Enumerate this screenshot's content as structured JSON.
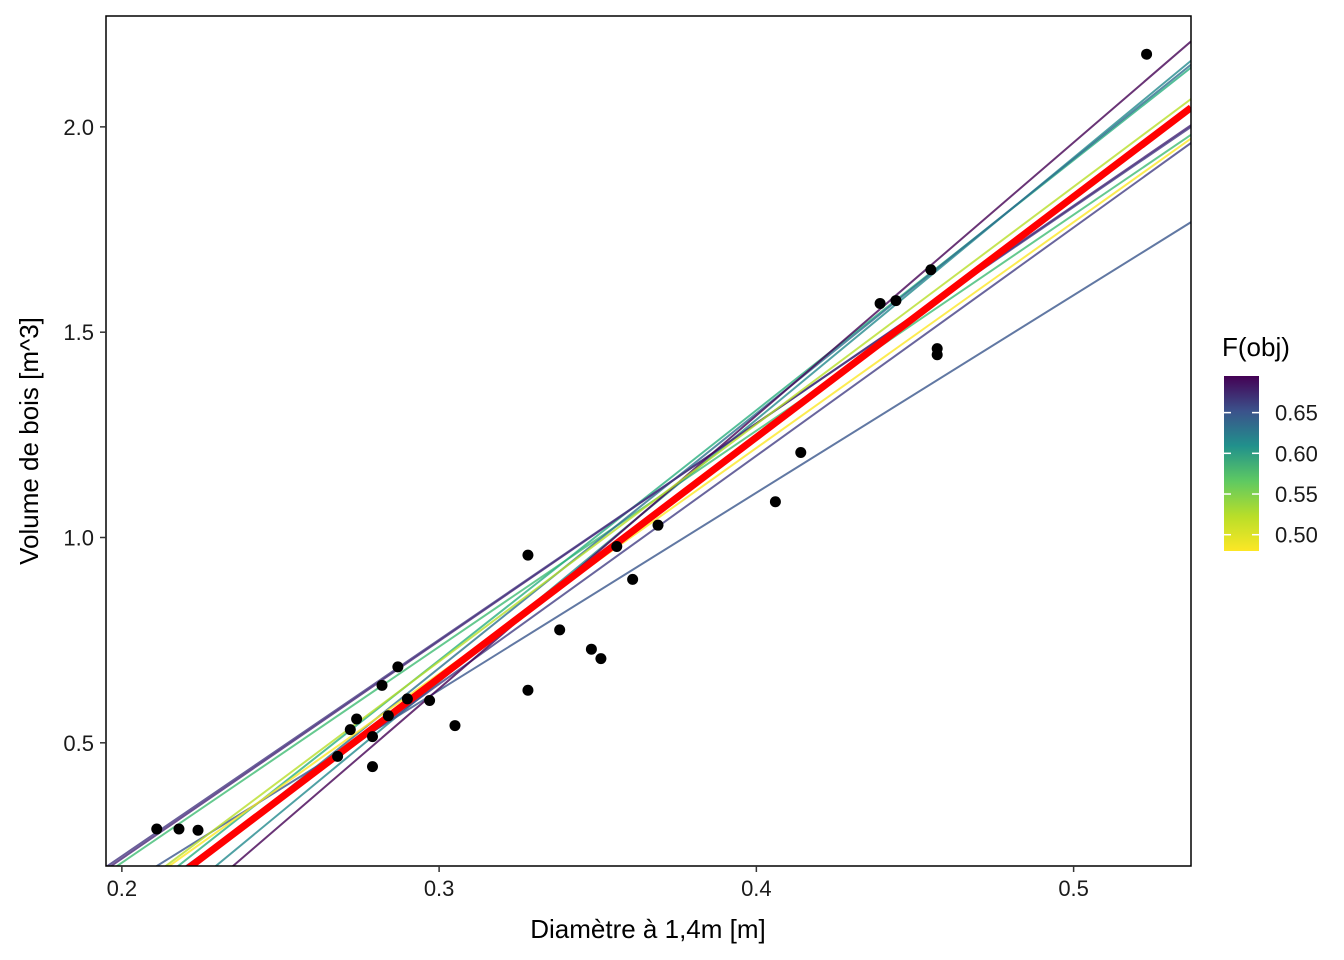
{
  "chart_data": {
    "type": "scatter",
    "title": "",
    "xlabel": "Diamètre à 1,4m  [m]",
    "ylabel": "Volume de bois  [m^3]",
    "xlim": [
      0.195,
      0.537
    ],
    "ylim": [
      0.2,
      2.27
    ],
    "x_ticks": [
      0.2,
      0.3,
      0.4,
      0.5
    ],
    "x_tick_labels": [
      "0.2",
      "0.3",
      "0.4",
      "0.5"
    ],
    "y_ticks": [
      0.5,
      1.0,
      1.5,
      2.0
    ],
    "y_tick_labels": [
      "0.5",
      "1.0",
      "1.5",
      "2.0"
    ],
    "grid": false,
    "points": [
      {
        "x": 0.211,
        "y": 0.29
      },
      {
        "x": 0.218,
        "y": 0.29
      },
      {
        "x": 0.224,
        "y": 0.287
      },
      {
        "x": 0.268,
        "y": 0.467
      },
      {
        "x": 0.272,
        "y": 0.532
      },
      {
        "x": 0.274,
        "y": 0.558
      },
      {
        "x": 0.279,
        "y": 0.442
      },
      {
        "x": 0.279,
        "y": 0.515
      },
      {
        "x": 0.282,
        "y": 0.64
      },
      {
        "x": 0.284,
        "y": 0.566
      },
      {
        "x": 0.287,
        "y": 0.685
      },
      {
        "x": 0.29,
        "y": 0.607
      },
      {
        "x": 0.297,
        "y": 0.603
      },
      {
        "x": 0.305,
        "y": 0.542
      },
      {
        "x": 0.328,
        "y": 0.957
      },
      {
        "x": 0.328,
        "y": 0.628
      },
      {
        "x": 0.338,
        "y": 0.775
      },
      {
        "x": 0.348,
        "y": 0.728
      },
      {
        "x": 0.351,
        "y": 0.705
      },
      {
        "x": 0.356,
        "y": 0.978
      },
      {
        "x": 0.361,
        "y": 0.898
      },
      {
        "x": 0.369,
        "y": 1.03
      },
      {
        "x": 0.406,
        "y": 1.087
      },
      {
        "x": 0.414,
        "y": 1.207
      },
      {
        "x": 0.439,
        "y": 1.57
      },
      {
        "x": 0.444,
        "y": 1.577
      },
      {
        "x": 0.455,
        "y": 1.652
      },
      {
        "x": 0.457,
        "y": 1.46
      },
      {
        "x": 0.457,
        "y": 1.445
      },
      {
        "x": 0.523,
        "y": 2.177
      }
    ],
    "fitted_lines": [
      {
        "fobj": 0.54,
        "slope": 5.26,
        "intercept": -0.844,
        "color": "#3fbc73"
      },
      {
        "fobj": 0.57,
        "slope": 6.09,
        "intercept": -1.126,
        "color": "#29af7f"
      },
      {
        "fobj": 0.59,
        "slope": 6.38,
        "intercept": -1.265,
        "color": "#238a8d"
      },
      {
        "fobj": 0.6,
        "slope": 6.2,
        "intercept": -1.178,
        "color": "#2d708e"
      },
      {
        "fobj": 0.63,
        "slope": 4.81,
        "intercept": -0.815,
        "color": "#39568c"
      },
      {
        "fobj": 0.64,
        "slope": 5.56,
        "intercept": -1.025,
        "color": "#433e85"
      },
      {
        "fobj": 0.66,
        "slope": 5.3,
        "intercept": -0.842,
        "color": "#482677"
      },
      {
        "fobj": 0.68,
        "slope": 5.27,
        "intercept": -0.83,
        "color": "#453781"
      },
      {
        "fobj": 0.69,
        "slope": 6.65,
        "intercept": -1.363,
        "color": "#440154"
      },
      {
        "fobj": 0.48,
        "slope": 5.5,
        "intercept": -0.982,
        "color": "#fde725"
      },
      {
        "fobj": 0.5,
        "slope": 5.78,
        "intercept": -1.036,
        "color": "#b8de29"
      }
    ],
    "fit_line": {
      "slope": 5.86,
      "intercept": -1.1,
      "color": "#ff0000"
    },
    "point_color": "#000000",
    "legend": {
      "title": "F(obj)",
      "placement": "right",
      "min": 0.48,
      "max": 0.695,
      "ticks": [
        0.5,
        0.55,
        0.6,
        0.65
      ],
      "tick_labels": [
        "0.50",
        "0.55",
        "0.60",
        "0.65"
      ],
      "colors": [
        "#fde725",
        "#b8de29",
        "#5ec962",
        "#21918c",
        "#3b528b",
        "#440154"
      ]
    }
  }
}
